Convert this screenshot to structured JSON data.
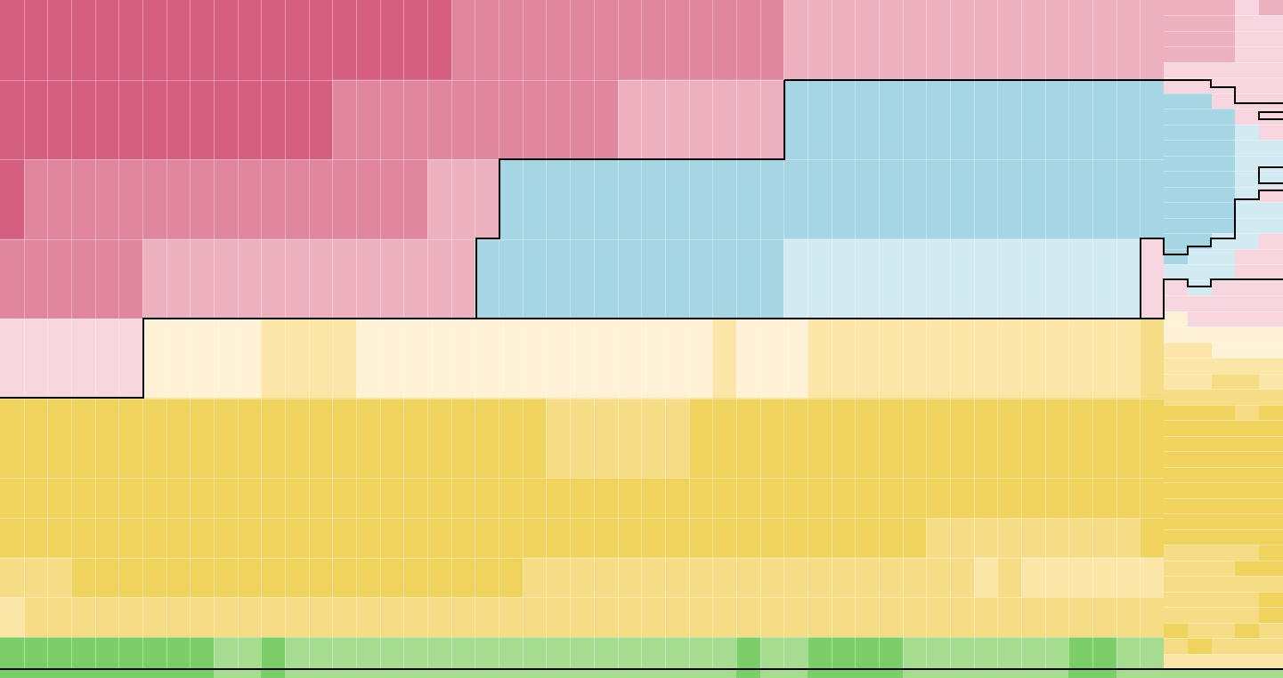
{
  "chart_data": {
    "type": "heatmap",
    "title": "",
    "xlabel": "",
    "ylabel": "",
    "grid": true,
    "legend": "none",
    "color_scale": {
      "pink-4": "#d45f80",
      "pink-3": "#e1869f",
      "pink-2": "#edb0bf",
      "pink-1": "#f7d6df",
      "blue-2": "#a6d5e3",
      "blue-1": "#d2eaf2",
      "yellow-1": "#fff2d6",
      "yellow-2": "#fbe6a8",
      "yellow-3": "#f6dc85",
      "yellow-4": "#efd35c",
      "green-2": "#a5dc8e",
      "green-3": "#7ccf68"
    },
    "columns": 49,
    "main_rows": [
      [
        "pink-4",
        "pink-4",
        "pink-4",
        "pink-4",
        "pink-4",
        "pink-4",
        "pink-4",
        "pink-4",
        "pink-4",
        "pink-4",
        "pink-4",
        "pink-4",
        "pink-4",
        "pink-4",
        "pink-4",
        "pink-4",
        "pink-4",
        "pink-4",
        "pink-4",
        "pink-either",
        "pink-3",
        "pink-3",
        "pink-3",
        "pink-3",
        "pink-3",
        "pink-3",
        "pink-3",
        "pink-3",
        "pink-3",
        "pink-3",
        "pink-3",
        "pink-3",
        "pink-3",
        "pink-2",
        "pink-2",
        "pink-2",
        "pink-2",
        "pink-2",
        "pink-2",
        "pink-2",
        "pink-2",
        "pink-2",
        "pink-2",
        "pink-2",
        "pink-2",
        "pink-2",
        "pink-2",
        "pink-2",
        "pink-2"
      ],
      [
        "pink-4",
        "pink-4",
        "pink-4",
        "pink-4",
        "pink-4",
        "pink-4",
        "pink-4",
        "pink-4",
        "pink-4",
        "pink-4",
        "pink-4",
        "pink-4",
        "pink-4",
        "pink-4",
        "pink-3",
        "pink-3",
        "pink-3",
        "pink-3",
        "pink-3",
        "pink-3",
        "pink-3",
        "pink-3",
        "pink-3",
        "pink-3",
        "pink-3",
        "pink-3",
        "pink-2",
        "pink-2",
        "pink-2",
        "pink-2",
        "pink-2",
        "pink-2",
        "pink-2",
        "blue-2",
        "blue-2",
        "blue-2",
        "blue-2",
        "blue-2",
        "blue-2",
        "blue-2",
        "blue-2",
        "blue-2",
        "blue-2",
        "blue-2",
        "blue-2",
        "blue-2",
        "blue-2",
        "blue-2",
        "blue-2"
      ],
      [
        "pink-4",
        "pink-3",
        "pink-3",
        "pink-3",
        "pink-3",
        "pink-3",
        "pink-3",
        "pink-3",
        "pink-3",
        "pink-3",
        "pink-3",
        "pink-3",
        "pink-3",
        "pink-3",
        "pink-3",
        "pink-3",
        "pink-3",
        "pink-3",
        "pink-2",
        "pink-2",
        "pink-2",
        "blue-2",
        "blue-2",
        "blue-2",
        "blue-2",
        "blue-2",
        "blue-2",
        "blue-2",
        "blue-2",
        "blue-2",
        "blue-2",
        "blue-2",
        "blue-2",
        "blue-2",
        "blue-2",
        "blue-2",
        "blue-2",
        "blue-2",
        "blue-2",
        "blue-2",
        "blue-2",
        "blue-2",
        "blue-2",
        "blue-2",
        "blue-2",
        "blue-2",
        "blue-2",
        "blue-2",
        "blue-2"
      ],
      [
        "pink-3",
        "pink-3",
        "pink-3",
        "pink-3",
        "pink-3",
        "pink-3",
        "pink-2",
        "pink-2",
        "pink-2",
        "pink-2",
        "pink-2",
        "pink-2",
        "pink-2",
        "pink-2",
        "pink-2",
        "pink-2",
        "pink-2",
        "pink-2",
        "pink-2",
        "pink-2",
        "blue-2",
        "blue-2",
        "blue-2",
        "blue-2",
        "blue-2",
        "blue-2",
        "blue-2",
        "blue-2",
        "blue-2",
        "blue-2",
        "blue-2",
        "blue-2",
        "blue-2",
        "blue-1",
        "blue-1",
        "blue-1",
        "blue-1",
        "blue-1",
        "blue-1",
        "blue-1",
        "blue-1",
        "blue-1",
        "blue-1",
        "blue-1",
        "blue-1",
        "blue-1",
        "blue-1",
        "blue-1",
        "pink-1"
      ],
      [
        "pink-1",
        "pink-1",
        "pink-1",
        "pink-1",
        "pink-1",
        "pink-1",
        "yellow-1",
        "yellow-1",
        "yellow-1",
        "yellow-1",
        "yellow-1",
        "yellow-2",
        "yellow-2",
        "yellow-2",
        "yellow-2",
        "yellow-1",
        "yellow-1",
        "yellow-1",
        "yellow-1",
        "yellow-1",
        "yellow-1",
        "yellow-1",
        "yellow-1",
        "yellow-1",
        "yellow-1",
        "yellow-1",
        "yellow-1",
        "yellow-1",
        "yellow-1",
        "yellow-1",
        "yellow-2",
        "yellow-1",
        "yellow-1",
        "yellow-1",
        "yellow-2",
        "yellow-2",
        "yellow-2",
        "yellow-2",
        "yellow-2",
        "yellow-2",
        "yellow-2",
        "yellow-2",
        "yellow-2",
        "yellow-2",
        "yellow-2",
        "yellow-2",
        "yellow-2",
        "yellow-2",
        "yellow-3"
      ],
      [
        "yellow-4",
        "yellow-4",
        "yellow-4",
        "yellow-4",
        "yellow-4",
        "yellow-4",
        "yellow-4",
        "yellow-4",
        "yellow-4",
        "yellow-4",
        "yellow-4",
        "yellow-4",
        "yellow-4",
        "yellow-4",
        "yellow-4",
        "yellow-4",
        "yellow-4",
        "yellow-4",
        "yellow-4",
        "yellow-4",
        "yellow-4",
        "yellow-4",
        "yellow-4",
        "yellow-3",
        "yellow-3",
        "yellow-3",
        "yellow-3",
        "yellow-3",
        "yellow-3",
        "yellow-4",
        "yellow-4",
        "yellow-4",
        "yellow-4",
        "yellow-4",
        "yellow-4",
        "yellow-4",
        "yellow-4",
        "yellow-4",
        "yellow-4",
        "yellow-4",
        "yellow-4",
        "yellow-4",
        "yellow-4",
        "yellow-4",
        "yellow-4",
        "yellow-4",
        "yellow-4",
        "yellow-4",
        "yellow-4"
      ],
      [
        "yellow-4",
        "yellow-4",
        "yellow-4",
        "yellow-4",
        "yellow-4",
        "yellow-4",
        "yellow-4",
        "yellow-4",
        "yellow-4",
        "yellow-4",
        "yellow-4",
        "yellow-4",
        "yellow-4",
        "yellow-4",
        "yellow-4",
        "yellow-4",
        "yellow-4",
        "yellow-4",
        "yellow-4",
        "yellow-4",
        "yellow-4",
        "yellow-4",
        "yellow-4",
        "yellow-4",
        "yellow-4",
        "yellow-4",
        "yellow-4",
        "yellow-4",
        "yellow-4",
        "yellow-4",
        "yellow-4",
        "yellow-4",
        "yellow-4",
        "yellow-4",
        "yellow-4",
        "yellow-4",
        "yellow-4",
        "yellow-4",
        "yellow-4",
        "yellow-4",
        "yellow-4",
        "yellow-4",
        "yellow-4",
        "yellow-4",
        "yellow-4",
        "yellow-4",
        "yellow-4",
        "yellow-4",
        "yellow-4"
      ],
      [
        "yellow-4",
        "yellow-4",
        "yellow-4",
        "yellow-4",
        "yellow-4",
        "yellow-4",
        "yellow-4",
        "yellow-4",
        "yellow-4",
        "yellow-4",
        "yellow-4",
        "yellow-4",
        "yellow-4",
        "yellow-4",
        "yellow-4",
        "yellow-4",
        "yellow-4",
        "yellow-4",
        "yellow-4",
        "yellow-4",
        "yellow-4",
        "yellow-4",
        "yellow-4",
        "yellow-4",
        "yellow-4",
        "yellow-4",
        "yellow-4",
        "yellow-4",
        "yellow-4",
        "yellow-4",
        "yellow-4",
        "yellow-4",
        "yellow-4",
        "yellow-4",
        "yellow-4",
        "yellow-4",
        "yellow-4",
        "yellow-4",
        "yellow-4",
        "yellow-3",
        "yellow-3",
        "yellow-3",
        "yellow-3",
        "yellow-3",
        "yellow-3",
        "yellow-3",
        "yellow-3",
        "yellow-3",
        "yellow-4"
      ],
      [
        "yellow-3",
        "yellow-3",
        "yellow-3",
        "yellow-4",
        "yellow-4",
        "yellow-4",
        "yellow-4",
        "yellow-4",
        "yellow-4",
        "yellow-4",
        "yellow-4",
        "yellow-4",
        "yellow-4",
        "yellow-4",
        "yellow-4",
        "yellow-4",
        "yellow-4",
        "yellow-4",
        "yellow-4",
        "yellow-4",
        "yellow-4",
        "yellow-4",
        "yellow-3",
        "yellow-3",
        "yellow-3",
        "yellow-3",
        "yellow-3",
        "yellow-3",
        "yellow-3",
        "yellow-3",
        "yellow-3",
        "yellow-3",
        "yellow-3",
        "yellow-3",
        "yellow-3",
        "yellow-3",
        "yellow-3",
        "yellow-3",
        "yellow-3",
        "yellow-3",
        "yellow-3",
        "yellow-2",
        "yellow-3",
        "yellow-2",
        "yellow-2",
        "yellow-2",
        "yellow-2",
        "yellow-2",
        "yellow-2"
      ],
      [
        "yellow-2",
        "yellow-3",
        "yellow-3",
        "yellow-3",
        "yellow-3",
        "yellow-3",
        "yellow-3",
        "yellow-3",
        "yellow-3",
        "yellow-3",
        "yellow-3",
        "yellow-3",
        "yellow-3",
        "yellow-3",
        "yellow-3",
        "yellow-3",
        "yellow-3",
        "yellow-3",
        "yellow-3",
        "yellow-3",
        "yellow-3",
        "yellow-3",
        "yellow-3",
        "yellow-3",
        "yellow-3",
        "yellow-3",
        "yellow-3",
        "yellow-3",
        "yellow-3",
        "yellow-3",
        "yellow-3",
        "yellow-3",
        "yellow-3",
        "yellow-3",
        "yellow-3",
        "yellow-3",
        "yellow-3",
        "yellow-3",
        "yellow-3",
        "yellow-3",
        "yellow-3",
        "yellow-3",
        "yellow-3",
        "yellow-3",
        "yellow-3",
        "yellow-3",
        "yellow-3",
        "yellow-3",
        "yellow-3"
      ],
      [
        "green-3",
        "green-3",
        "green-3",
        "green-3",
        "green-3",
        "green-3",
        "green-3",
        "green-3",
        "green-3",
        "green-2",
        "green-2",
        "green-3",
        "green-2",
        "green-2",
        "green-2",
        "green-2",
        "green-2",
        "green-2",
        "green-2",
        "green-2",
        "green-2",
        "green-2",
        "green-2",
        "green-2",
        "green-2",
        "green-2",
        "green-2",
        "green-2",
        "green-2",
        "green-2",
        "green-2",
        "green-3",
        "green-2",
        "green-2",
        "green-3",
        "green-3",
        "green-3",
        "green-3",
        "green-2",
        "green-2",
        "green-2",
        "green-2",
        "green-2",
        "green-2",
        "green-2",
        "green-3",
        "green-3",
        "green-2",
        "green-2"
      ]
    ],
    "right_strip": {
      "columns": 5,
      "rows": [
        [
          "pink-2",
          "pink-2",
          "pink-2",
          "pink-1",
          "pink-2"
        ],
        [
          "pink-2",
          "pink-2",
          "pink-2",
          "pink-1",
          "pink-1"
        ],
        [
          "pink-2",
          "pink-2",
          "pink-2",
          "pink-1",
          "pink-1"
        ],
        [
          "pink-2",
          "pink-2",
          "pink-2",
          "pink-1",
          "pink-1"
        ],
        [
          "pink-1",
          "pink-1",
          "pink-1",
          "pink-1",
          "pink-1"
        ],
        [
          "pink-1",
          "pink-1",
          "pink-1",
          "pink-1",
          "pink-1"
        ],
        [
          "blue-2",
          "blue-2",
          "pink-1",
          "pink-1",
          "pink-1"
        ],
        [
          "blue-2",
          "blue-2",
          "blue-2",
          "pink-1",
          "pink-1"
        ],
        [
          "blue-2",
          "blue-2",
          "blue-2",
          "blue-1",
          "pink-1"
        ],
        [
          "blue-2",
          "blue-2",
          "blue-2",
          "blue-1",
          "blue-1"
        ],
        [
          "blue-2",
          "blue-2",
          "blue-2",
          "blue-1",
          "blue-1"
        ],
        [
          "blue-2",
          "blue-2",
          "blue-2",
          "blue-1",
          "blue-1"
        ],
        [
          "blue-2",
          "blue-2",
          "blue-2",
          "blue-1",
          "pink-1"
        ],
        [
          "blue-2",
          "blue-2",
          "blue-2",
          "blue-1",
          "blue-1"
        ],
        [
          "blue-2",
          "blue-2",
          "blue-2",
          "blue-1",
          "blue-1"
        ],
        [
          "blue-2",
          "blue-2",
          "blue-1",
          "blue-1",
          "pink-1"
        ],
        [
          "blue-2",
          "blue-1",
          "blue-1",
          "pink-1",
          "pink-1"
        ],
        [
          "blue-1",
          "blue-1",
          "blue-1",
          "pink-1",
          "pink-1"
        ],
        [
          "pink-1",
          "blue-1",
          "pink-1",
          "pink-1",
          "pink-1"
        ],
        [
          "pink-1",
          "pink-1",
          "pink-1",
          "pink-1",
          "pink-1"
        ],
        [
          "yellow-1",
          "pink-1",
          "pink-1",
          "pink-1",
          "pink-1"
        ],
        [
          "yellow-1",
          "yellow-1",
          "yellow-1",
          "yellow-1",
          "yellow-1"
        ],
        [
          "yellow-2",
          "yellow-2",
          "yellow-1",
          "yellow-1",
          "yellow-1"
        ],
        [
          "yellow-2",
          "yellow-2",
          "yellow-2",
          "yellow-2",
          "yellow-2"
        ],
        [
          "yellow-2",
          "yellow-2",
          "yellow-3",
          "yellow-3",
          "yellow-2"
        ],
        [
          "yellow-3",
          "yellow-3",
          "yellow-3",
          "yellow-3",
          "yellow-3"
        ],
        [
          "yellow-4",
          "yellow-4",
          "yellow-4",
          "yellow-3",
          "yellow-4"
        ],
        [
          "yellow-4",
          "yellow-4",
          "yellow-4",
          "yellow-4",
          "yellow-4"
        ],
        [
          "yellow-4",
          "yellow-4",
          "yellow-4",
          "yellow-4",
          "yellow-4"
        ],
        [
          "yellow-4",
          "yellow-4",
          "yellow-4",
          "yellow-4",
          "yellow-4"
        ],
        [
          "yellow-4",
          "yellow-4",
          "yellow-4",
          "yellow-4",
          "yellow-4"
        ],
        [
          "yellow-4",
          "yellow-4",
          "yellow-4",
          "yellow-4",
          "yellow-4"
        ],
        [
          "yellow-4",
          "yellow-4",
          "yellow-4",
          "yellow-4",
          "yellow-4"
        ],
        [
          "yellow-4",
          "yellow-4",
          "yellow-4",
          "yellow-4",
          "yellow-4"
        ],
        [
          "yellow-4",
          "yellow-4",
          "yellow-4",
          "yellow-4",
          "yellow-4"
        ],
        [
          "yellow-3",
          "yellow-3",
          "yellow-3",
          "yellow-3",
          "yellow-4"
        ],
        [
          "yellow-3",
          "yellow-3",
          "yellow-3",
          "yellow-4",
          "yellow-4"
        ],
        [
          "yellow-3",
          "yellow-3",
          "yellow-3",
          "yellow-3",
          "yellow-3"
        ],
        [
          "yellow-3",
          "yellow-3",
          "yellow-3",
          "yellow-3",
          "yellow-4"
        ],
        [
          "yellow-3",
          "yellow-3",
          "yellow-3",
          "yellow-3",
          "yellow-4"
        ],
        [
          "yellow-4",
          "yellow-3",
          "yellow-3",
          "yellow-4",
          "yellow-3"
        ],
        [
          "yellow-3",
          "yellow-4",
          "yellow-3",
          "yellow-3",
          "yellow-3"
        ],
        [
          "yellow-2",
          "yellow-2",
          "yellow-2",
          "yellow-2",
          "yellow-2"
        ]
      ]
    }
  }
}
